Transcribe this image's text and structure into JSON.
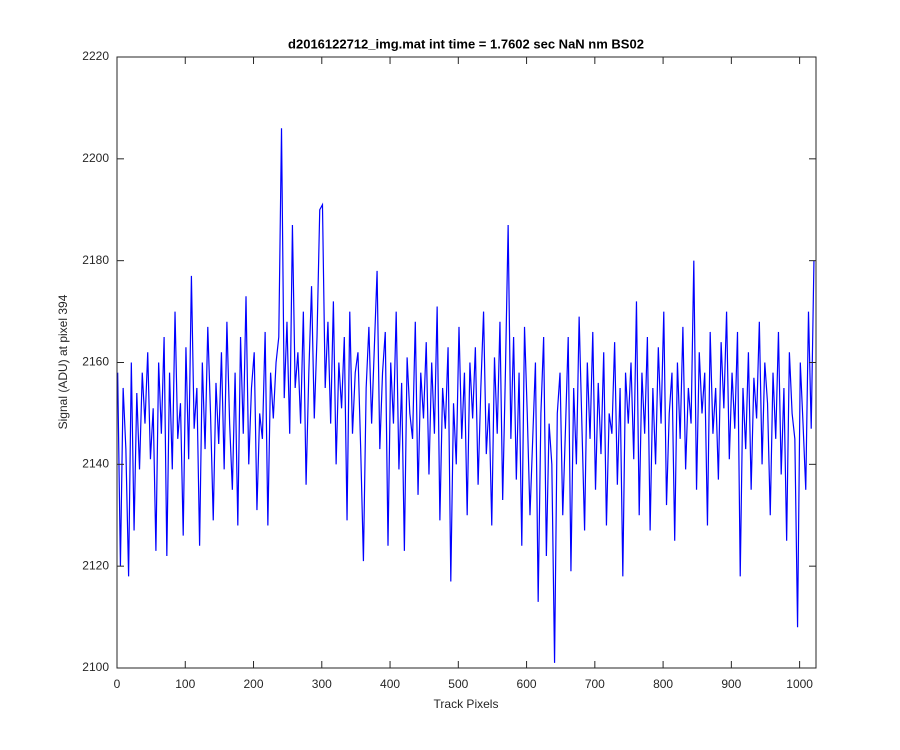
{
  "chart_data": {
    "type": "line",
    "title": "d2016122712_img.mat int time = 1.7602 sec  NaN nm BS02",
    "xlabel": "Track Pixels",
    "ylabel": "Signal (ADU) at pixel 394",
    "color": "#0000ff",
    "xlim": [
      0,
      1024
    ],
    "ylim": [
      2100,
      2220
    ],
    "xticks": [
      0,
      100,
      200,
      300,
      400,
      500,
      600,
      700,
      800,
      900,
      1000
    ],
    "yticks": [
      2100,
      2120,
      2140,
      2160,
      2180,
      2200,
      2220
    ],
    "x": [
      1,
      5,
      9,
      13,
      17,
      21,
      25,
      29,
      33,
      37,
      41,
      45,
      49,
      53,
      57,
      61,
      65,
      69,
      73,
      77,
      81,
      85,
      89,
      93,
      97,
      101,
      105,
      109,
      113,
      117,
      121,
      125,
      129,
      133,
      137,
      141,
      145,
      149,
      153,
      157,
      161,
      165,
      169,
      173,
      177,
      181,
      185,
      189,
      193,
      197,
      201,
      205,
      209,
      213,
      217,
      221,
      225,
      229,
      233,
      237,
      241,
      245,
      249,
      253,
      257,
      261,
      265,
      269,
      273,
      277,
      281,
      285,
      289,
      293,
      297,
      301,
      305,
      309,
      313,
      317,
      321,
      325,
      329,
      333,
      337,
      341,
      345,
      349,
      353,
      357,
      361,
      365,
      369,
      373,
      377,
      381,
      385,
      389,
      393,
      397,
      401,
      405,
      409,
      413,
      417,
      421,
      425,
      429,
      433,
      437,
      441,
      445,
      449,
      453,
      457,
      461,
      465,
      469,
      473,
      477,
      481,
      485,
      489,
      493,
      497,
      501,
      505,
      509,
      513,
      517,
      521,
      525,
      529,
      533,
      537,
      541,
      545,
      549,
      553,
      557,
      561,
      565,
      569,
      573,
      577,
      581,
      585,
      589,
      593,
      597,
      601,
      605,
      609,
      613,
      617,
      621,
      625,
      629,
      633,
      637,
      641,
      645,
      649,
      653,
      657,
      661,
      665,
      669,
      673,
      677,
      681,
      685,
      689,
      693,
      697,
      701,
      705,
      709,
      713,
      717,
      721,
      725,
      729,
      733,
      737,
      741,
      745,
      749,
      753,
      757,
      761,
      765,
      769,
      773,
      777,
      781,
      785,
      789,
      793,
      797,
      801,
      805,
      809,
      813,
      817,
      821,
      825,
      829,
      833,
      837,
      841,
      845,
      849,
      853,
      857,
      861,
      865,
      869,
      873,
      877,
      881,
      885,
      889,
      893,
      897,
      901,
      905,
      909,
      913,
      917,
      921,
      925,
      929,
      933,
      937,
      941,
      945,
      949,
      953,
      957,
      961,
      965,
      969,
      973,
      977,
      981,
      985,
      989,
      993,
      997,
      1001,
      1005,
      1009,
      1013,
      1017,
      1021
    ],
    "values": [
      2158,
      2120,
      2155,
      2143,
      2118,
      2160,
      2127,
      2154,
      2139,
      2158,
      2148,
      2162,
      2141,
      2151,
      2123,
      2160,
      2146,
      2165,
      2122,
      2158,
      2139,
      2170,
      2145,
      2152,
      2126,
      2163,
      2141,
      2177,
      2147,
      2155,
      2124,
      2160,
      2143,
      2167,
      2150,
      2129,
      2156,
      2144,
      2162,
      2139,
      2168,
      2148,
      2135,
      2158,
      2128,
      2165,
      2146,
      2173,
      2140,
      2155,
      2162,
      2131,
      2150,
      2145,
      2166,
      2128,
      2158,
      2149,
      2160,
      2165,
      2206,
      2153,
      2168,
      2146,
      2187,
      2155,
      2162,
      2148,
      2170,
      2136,
      2158,
      2175,
      2149,
      2165,
      2190,
      2191,
      2155,
      2168,
      2148,
      2172,
      2140,
      2160,
      2151,
      2165,
      2129,
      2170,
      2146,
      2158,
      2162,
      2143,
      2121,
      2155,
      2167,
      2148,
      2163,
      2178,
      2143,
      2158,
      2166,
      2124,
      2160,
      2148,
      2170,
      2139,
      2156,
      2123,
      2161,
      2150,
      2145,
      2168,
      2134,
      2158,
      2149,
      2164,
      2138,
      2160,
      2146,
      2171,
      2129,
      2155,
      2147,
      2163,
      2117,
      2152,
      2140,
      2167,
      2145,
      2158,
      2130,
      2160,
      2149,
      2163,
      2136,
      2155,
      2170,
      2142,
      2152,
      2128,
      2161,
      2146,
      2168,
      2133,
      2158,
      2187,
      2145,
      2165,
      2137,
      2158,
      2124,
      2167,
      2150,
      2130,
      2145,
      2160,
      2113,
      2150,
      2165,
      2122,
      2148,
      2140,
      2101,
      2150,
      2158,
      2130,
      2147,
      2165,
      2119,
      2155,
      2140,
      2169,
      2148,
      2127,
      2160,
      2145,
      2166,
      2135,
      2156,
      2142,
      2162,
      2128,
      2150,
      2146,
      2164,
      2136,
      2155,
      2118,
      2158,
      2148,
      2160,
      2141,
      2172,
      2130,
      2158,
      2146,
      2165,
      2127,
      2155,
      2140,
      2163,
      2148,
      2170,
      2132,
      2150,
      2158,
      2125,
      2160,
      2145,
      2167,
      2139,
      2155,
      2148,
      2180,
      2135,
      2162,
      2150,
      2158,
      2128,
      2166,
      2146,
      2155,
      2137,
      2164,
      2151,
      2170,
      2141,
      2158,
      2147,
      2166,
      2118,
      2155,
      2143,
      2162,
      2135,
      2157,
      2149,
      2168,
      2140,
      2160,
      2152,
      2130,
      2158,
      2145,
      2166,
      2138,
      2155,
      2125,
      2162,
      2150,
      2145,
      2108,
      2160,
      2148,
      2135,
      2170,
      2147,
      2180
    ]
  }
}
